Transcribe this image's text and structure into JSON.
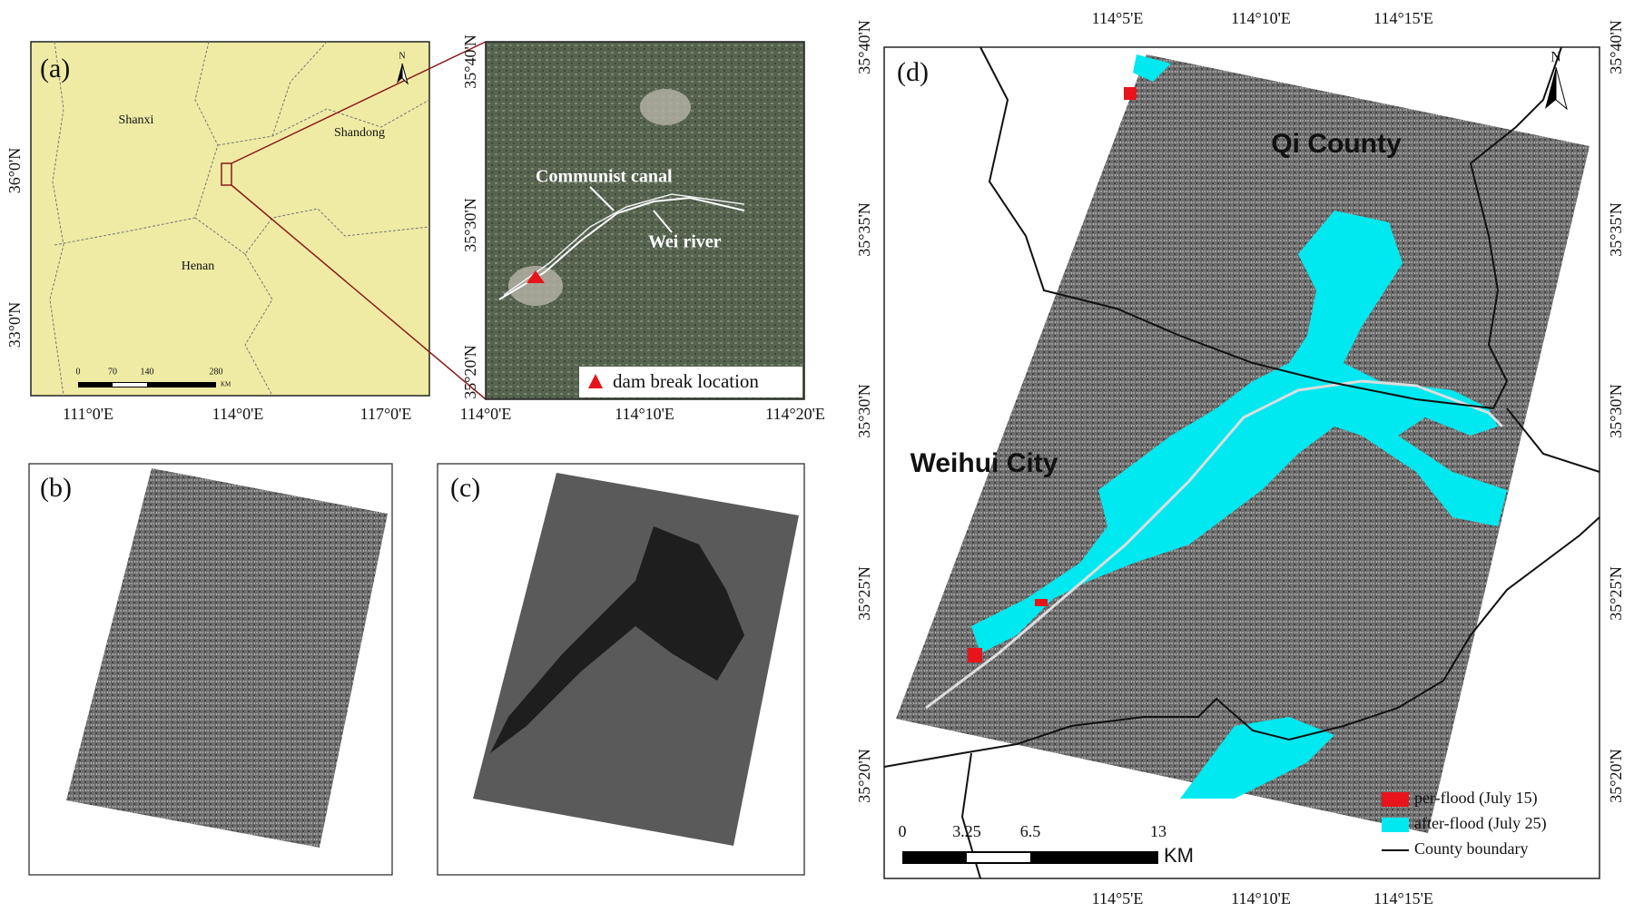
{
  "panel_a": {
    "label": "(a)",
    "regions": [
      "Shanxi",
      "Shandong",
      "Henan"
    ],
    "north": "N",
    "scale_labels": [
      "0",
      "70",
      "140",
      "280"
    ],
    "scale_unit": "KM",
    "y_ticks": [
      "36°0'N",
      "33°0'N"
    ],
    "x_ticks": [
      "111°0'E",
      "114°0'E",
      "117°0'E"
    ]
  },
  "inset": {
    "annotations": [
      "Communist canal",
      "Wei river"
    ],
    "legend": "dam break location",
    "y_ticks": [
      "35°40'N",
      "35°30'N",
      "35°20'N"
    ],
    "x_ticks": [
      "114°0'E",
      "114°10'E",
      "114°20'E"
    ]
  },
  "panel_b": {
    "label": "(b)"
  },
  "panel_c": {
    "label": "(c)"
  },
  "panel_d": {
    "label": "(d)",
    "places": [
      "Qi County",
      "Weihui City"
    ],
    "north": "N",
    "scale_labels": [
      "0",
      "3.25",
      "6.5",
      "13"
    ],
    "scale_unit": "KM",
    "legend": [
      "per-flood (July 15)",
      "after-flood (July 25)",
      "County boundary"
    ],
    "x_ticks": [
      "114°5'E",
      "114°10'E",
      "114°15'E"
    ],
    "y_ticks": [
      "35°40'N",
      "35°35'N",
      "35°30'N",
      "35°25'N",
      "35°20'N"
    ]
  }
}
